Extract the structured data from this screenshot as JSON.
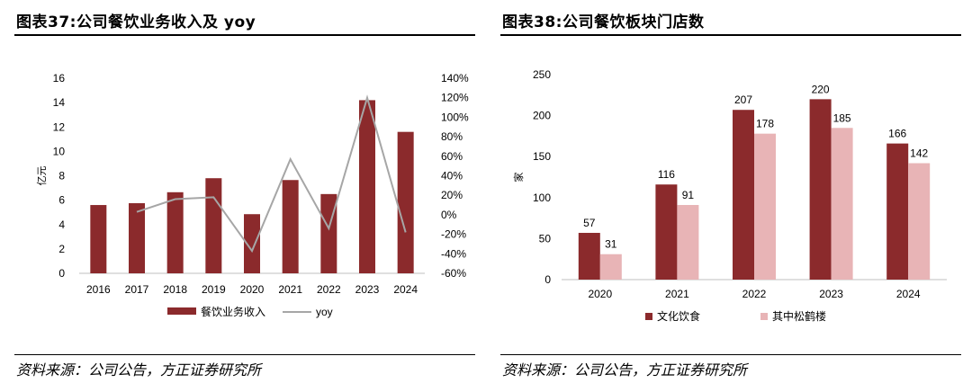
{
  "left": {
    "title": "图表37:公司餐饮业务收入及 yoy",
    "source": "资料来源：公司公告，方正证券研究所"
  },
  "right": {
    "title": "图表38:公司餐饮板块门店数",
    "source": "资料来源：公司公告，方正证券研究所"
  },
  "chart_data": [
    {
      "type": "bar",
      "secondary_type": "line",
      "title": "",
      "categories": [
        "2016",
        "2017",
        "2018",
        "2019",
        "2020",
        "2021",
        "2022",
        "2023",
        "2024"
      ],
      "ylabel": "亿元",
      "ylim": [
        0,
        16
      ],
      "yticks": [
        "0",
        "2",
        "4",
        "6",
        "8",
        "10",
        "12",
        "14",
        "16"
      ],
      "y2lim": [
        -60,
        140
      ],
      "y2ticks": [
        "-60%",
        "-40%",
        "-20%",
        "0%",
        "20%",
        "40%",
        "60%",
        "80%",
        "100%",
        "120%",
        "140%"
      ],
      "grid": false,
      "legend_position": "bottom",
      "series": [
        {
          "name": "餐饮业务收入",
          "axis": "left",
          "color": "#8b2a2c",
          "values": [
            5.6,
            5.75,
            6.65,
            7.8,
            4.85,
            7.65,
            6.5,
            14.2,
            11.6
          ]
        },
        {
          "name": "yoy",
          "axis": "right",
          "color": "#a6a6a6",
          "values": [
            null,
            3,
            16,
            18,
            -37,
            57,
            -14,
            120,
            -18
          ]
        }
      ]
    },
    {
      "type": "bar",
      "title": "",
      "categories": [
        "2020",
        "2021",
        "2022",
        "2023",
        "2024"
      ],
      "ylabel": "家",
      "ylim": [
        0,
        250
      ],
      "yticks": [
        "0",
        "50",
        "100",
        "150",
        "200",
        "250"
      ],
      "grid": false,
      "legend_position": "bottom",
      "series": [
        {
          "name": "文化饮食",
          "color": "#8b2a2c",
          "values": [
            57,
            116,
            207,
            220,
            166
          ],
          "labels": [
            "57",
            "116",
            "207",
            "220",
            "166"
          ]
        },
        {
          "name": "其中松鹤楼",
          "color": "#e8b4b6",
          "values": [
            31,
            91,
            178,
            185,
            142
          ],
          "labels": [
            "31",
            "91",
            "178",
            "185",
            "142"
          ]
        }
      ]
    }
  ]
}
